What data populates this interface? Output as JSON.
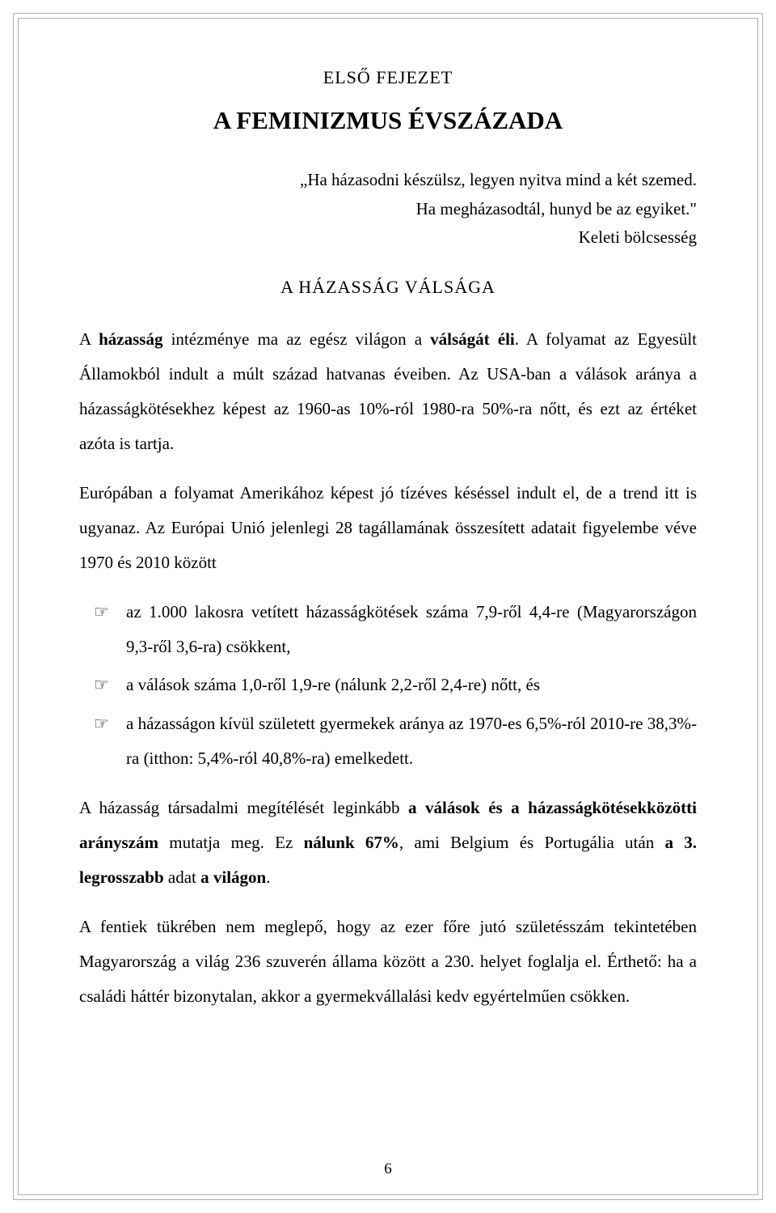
{
  "chapter_label": "ELSŐ FEJEZET",
  "chapter_title": "A FEMINIZMUS ÉVSZÁZADA",
  "quote": {
    "line1": "„Ha házasodni készülsz, legyen nyitva mind a két szemed.",
    "line2": "Ha megházasodtál, hunyd be az egyiket.\"",
    "attribution": "Keleti bölcsesség"
  },
  "section_heading": "A HÁZASSÁG VÁLSÁGA",
  "para1": {
    "pre": "A ",
    "b1": "házasság",
    "mid1": " intézménye ma az egész világon a ",
    "b2": "válságát éli",
    "rest": ". A folyamat az Egyesült Államokból indult a múlt század hatvanas éveiben. Az USA-ban a válások aránya a házasságkötésekhez képest az 1960-as 10%-ról 1980-ra 50%-ra nőtt, és ezt az értéket azóta is tartja."
  },
  "para2": "Európában a folyamat Amerikához képest jó tízéves késéssel indult el, de a trend itt is ugyanaz. Az Európai Unió jelenlegi 28 tagállamának összesített adatait figyelembe véve 1970 és 2010 között",
  "bullets": [
    "az 1.000 lakosra vetített házasságkötések száma 7,9-ről 4,4-re (Magyarországon 9,3-ről 3,6-ra) csökkent,",
    "a válások száma 1,0-ről 1,9-re (nálunk 2,2-ről 2,4-re) nőtt, és",
    "a házasságon kívül született gyermekek aránya az 1970-es 6,5%-ról 2010-re 38,3%-ra (itthon: 5,4%-ról 40,8%-ra) emelkedett."
  ],
  "para3": {
    "pre": "A házasság társadalmi megítélését leginkább ",
    "b1": "a válások és a házasságkötésekközötti arányszám",
    "mid1": " mutatja meg. Ez ",
    "b2": "nálunk 67%",
    "mid2": ", ami Belgium és Portugália után ",
    "b3": "a 3. legrosszabb",
    "mid3": " adat ",
    "b4": "a világon",
    "rest": "."
  },
  "para4": "A fentiek tükrében nem meglepő, hogy az ezer főre jutó születésszám tekintetében Magyarország a világ 236 szuverén állama között a 230. helyet foglalja el. Érthető: ha a családi háttér bizonytalan, akkor a gyermekvállalási kedv egyértelműen csökken.",
  "page_number": "6",
  "colors": {
    "text": "#000000",
    "border": "#b0b0b0",
    "background": "#ffffff"
  },
  "typography": {
    "body_fontsize": 21,
    "title_fontsize": 31,
    "label_fontsize": 22,
    "line_height": 2.05,
    "font_family": "Georgia, serif"
  }
}
